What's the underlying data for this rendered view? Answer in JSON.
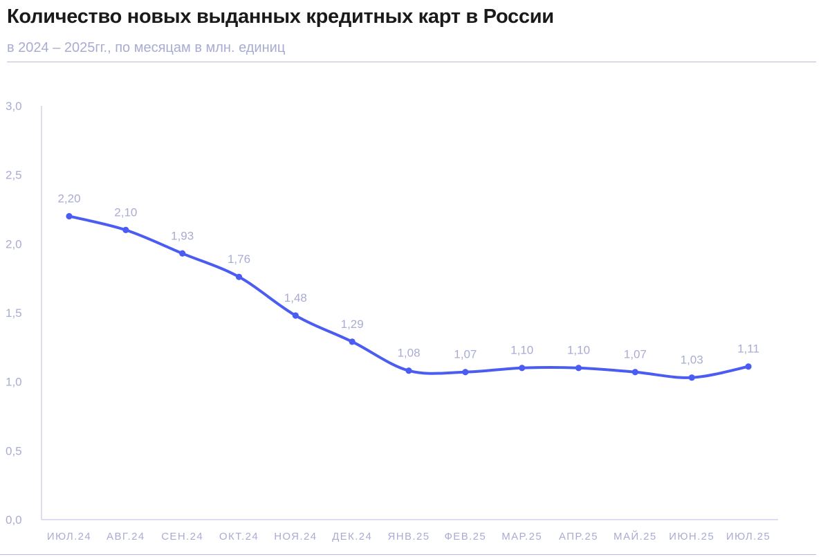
{
  "header": {
    "title": "Количество новых выданных кредитных карт в России",
    "subtitle": "в 2024 – 2025гг., по месяцам в млн. единиц"
  },
  "colors": {
    "line": "#4a5cf2",
    "text_muted": "#a9acd2",
    "axis": "#c7c9e6"
  },
  "chart_data": {
    "type": "line",
    "title": "Количество новых выданных кредитных карт в России",
    "subtitle": "в 2024 – 2025гг., по месяцам в млн. единиц",
    "categories": [
      "ИЮЛ.24",
      "АВГ.24",
      "СЕН.24",
      "ОКТ.24",
      "НОЯ.24",
      "ДЕК.24",
      "ЯНВ.25",
      "ФЕВ.25",
      "МАР.25",
      "АПР.25",
      "МАЙ.25",
      "ИЮН.25",
      "ИЮЛ.25"
    ],
    "values": [
      2.2,
      2.1,
      1.93,
      1.76,
      1.48,
      1.29,
      1.08,
      1.07,
      1.1,
      1.1,
      1.07,
      1.03,
      1.11
    ],
    "value_labels": [
      "2,20",
      "2,10",
      "1,93",
      "1,76",
      "1,48",
      "1,29",
      "1,08",
      "1,07",
      "1,10",
      "1,10",
      "1,07",
      "1,03",
      "1,11"
    ],
    "ylim": [
      0,
      3
    ],
    "yticks": [
      0,
      0.5,
      1.0,
      1.5,
      2.0,
      2.5,
      3.0
    ],
    "ytick_labels": [
      "0,0",
      "0,5",
      "1,0",
      "1,5",
      "2,0",
      "2,5",
      "3,0"
    ],
    "xlabel": "",
    "ylabel": "",
    "grid": false,
    "legend": "none"
  }
}
